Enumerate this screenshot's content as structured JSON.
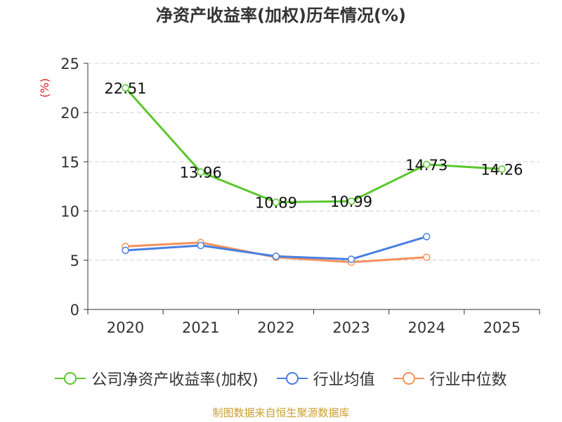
{
  "title": "净资产收益率(加权)历年情况(%)",
  "footer": "制图数据来自恒生聚源数据库",
  "colors": {
    "company": "#5cc72e",
    "industry_avg": "#4a7fe0",
    "industry_median": "#f5905a",
    "unit": "#e02020",
    "footer": "#c8a032",
    "grid": "#cccccc",
    "axis": "#333333"
  },
  "chart_data": {
    "type": "line",
    "title": "净资产收益率(加权)历年情况(%)",
    "ylabel": "(%)",
    "xlabel": "",
    "ylim": [
      0,
      25
    ],
    "yticks": [
      0,
      5,
      10,
      15,
      20,
      25
    ],
    "categories": [
      "2020",
      "2021",
      "2022",
      "2023",
      "2024",
      "2025"
    ],
    "grid": true,
    "legend_position": "bottom",
    "series": [
      {
        "name": "公司净资产收益率(加权)",
        "color": "#5cc72e",
        "values": [
          22.51,
          13.96,
          10.89,
          10.99,
          14.73,
          14.26
        ],
        "labels": [
          "22.51",
          "13.96",
          "10.89",
          "10.99",
          "14.73",
          "14.26"
        ]
      },
      {
        "name": "行业均值",
        "color": "#4a7fe0",
        "values": [
          6.0,
          6.5,
          5.4,
          5.1,
          7.4,
          null
        ]
      },
      {
        "name": "行业中位数",
        "color": "#f5905a",
        "values": [
          6.4,
          6.8,
          5.3,
          4.8,
          5.3,
          null
        ]
      }
    ]
  }
}
